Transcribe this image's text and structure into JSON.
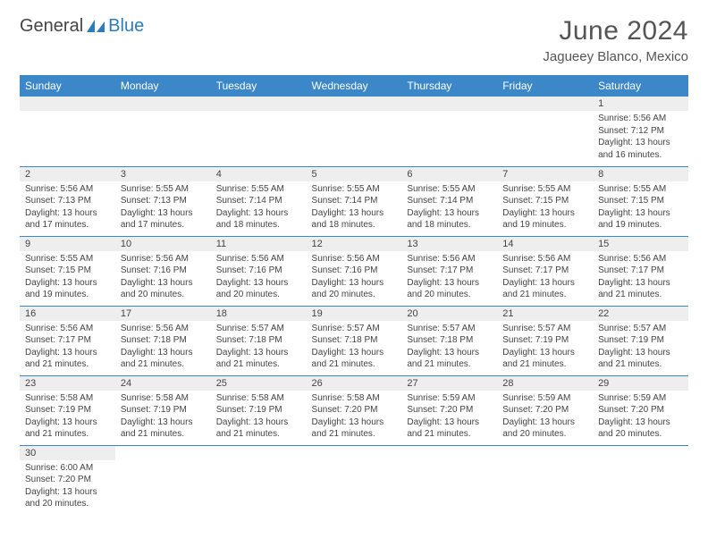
{
  "brand": {
    "part1": "General",
    "part2": "Blue",
    "logo_color": "#2b7bbd",
    "text_color": "#444444"
  },
  "title": "June 2024",
  "location": "Jagueey Blanco, Mexico",
  "header_bg": "#3b87c8",
  "header_fg": "#ffffff",
  "daynum_bg": "#eeeeee",
  "border_color": "#3b87c8",
  "body_text_color": "#444444",
  "font_family": "Arial, Helvetica, sans-serif",
  "title_fontsize": 30,
  "location_fontsize": 15,
  "header_fontsize": 12,
  "daynum_fontsize": 11,
  "body_fontsize": 10,
  "columns": [
    "Sunday",
    "Monday",
    "Tuesday",
    "Wednesday",
    "Thursday",
    "Friday",
    "Saturday"
  ],
  "weeks": [
    [
      null,
      null,
      null,
      null,
      null,
      null,
      {
        "n": "1",
        "sunrise": "5:56 AM",
        "sunset": "7:12 PM",
        "daylight": "13 hours and 16 minutes."
      }
    ],
    [
      {
        "n": "2",
        "sunrise": "5:56 AM",
        "sunset": "7:13 PM",
        "daylight": "13 hours and 17 minutes."
      },
      {
        "n": "3",
        "sunrise": "5:55 AM",
        "sunset": "7:13 PM",
        "daylight": "13 hours and 17 minutes."
      },
      {
        "n": "4",
        "sunrise": "5:55 AM",
        "sunset": "7:14 PM",
        "daylight": "13 hours and 18 minutes."
      },
      {
        "n": "5",
        "sunrise": "5:55 AM",
        "sunset": "7:14 PM",
        "daylight": "13 hours and 18 minutes."
      },
      {
        "n": "6",
        "sunrise": "5:55 AM",
        "sunset": "7:14 PM",
        "daylight": "13 hours and 18 minutes."
      },
      {
        "n": "7",
        "sunrise": "5:55 AM",
        "sunset": "7:15 PM",
        "daylight": "13 hours and 19 minutes."
      },
      {
        "n": "8",
        "sunrise": "5:55 AM",
        "sunset": "7:15 PM",
        "daylight": "13 hours and 19 minutes."
      }
    ],
    [
      {
        "n": "9",
        "sunrise": "5:55 AM",
        "sunset": "7:15 PM",
        "daylight": "13 hours and 19 minutes."
      },
      {
        "n": "10",
        "sunrise": "5:56 AM",
        "sunset": "7:16 PM",
        "daylight": "13 hours and 20 minutes."
      },
      {
        "n": "11",
        "sunrise": "5:56 AM",
        "sunset": "7:16 PM",
        "daylight": "13 hours and 20 minutes."
      },
      {
        "n": "12",
        "sunrise": "5:56 AM",
        "sunset": "7:16 PM",
        "daylight": "13 hours and 20 minutes."
      },
      {
        "n": "13",
        "sunrise": "5:56 AM",
        "sunset": "7:17 PM",
        "daylight": "13 hours and 20 minutes."
      },
      {
        "n": "14",
        "sunrise": "5:56 AM",
        "sunset": "7:17 PM",
        "daylight": "13 hours and 21 minutes."
      },
      {
        "n": "15",
        "sunrise": "5:56 AM",
        "sunset": "7:17 PM",
        "daylight": "13 hours and 21 minutes."
      }
    ],
    [
      {
        "n": "16",
        "sunrise": "5:56 AM",
        "sunset": "7:17 PM",
        "daylight": "13 hours and 21 minutes."
      },
      {
        "n": "17",
        "sunrise": "5:56 AM",
        "sunset": "7:18 PM",
        "daylight": "13 hours and 21 minutes."
      },
      {
        "n": "18",
        "sunrise": "5:57 AM",
        "sunset": "7:18 PM",
        "daylight": "13 hours and 21 minutes."
      },
      {
        "n": "19",
        "sunrise": "5:57 AM",
        "sunset": "7:18 PM",
        "daylight": "13 hours and 21 minutes."
      },
      {
        "n": "20",
        "sunrise": "5:57 AM",
        "sunset": "7:18 PM",
        "daylight": "13 hours and 21 minutes."
      },
      {
        "n": "21",
        "sunrise": "5:57 AM",
        "sunset": "7:19 PM",
        "daylight": "13 hours and 21 minutes."
      },
      {
        "n": "22",
        "sunrise": "5:57 AM",
        "sunset": "7:19 PM",
        "daylight": "13 hours and 21 minutes."
      }
    ],
    [
      {
        "n": "23",
        "sunrise": "5:58 AM",
        "sunset": "7:19 PM",
        "daylight": "13 hours and 21 minutes."
      },
      {
        "n": "24",
        "sunrise": "5:58 AM",
        "sunset": "7:19 PM",
        "daylight": "13 hours and 21 minutes."
      },
      {
        "n": "25",
        "sunrise": "5:58 AM",
        "sunset": "7:19 PM",
        "daylight": "13 hours and 21 minutes."
      },
      {
        "n": "26",
        "sunrise": "5:58 AM",
        "sunset": "7:20 PM",
        "daylight": "13 hours and 21 minutes."
      },
      {
        "n": "27",
        "sunrise": "5:59 AM",
        "sunset": "7:20 PM",
        "daylight": "13 hours and 21 minutes."
      },
      {
        "n": "28",
        "sunrise": "5:59 AM",
        "sunset": "7:20 PM",
        "daylight": "13 hours and 20 minutes."
      },
      {
        "n": "29",
        "sunrise": "5:59 AM",
        "sunset": "7:20 PM",
        "daylight": "13 hours and 20 minutes."
      }
    ],
    [
      {
        "n": "30",
        "sunrise": "6:00 AM",
        "sunset": "7:20 PM",
        "daylight": "13 hours and 20 minutes."
      },
      null,
      null,
      null,
      null,
      null,
      null
    ]
  ]
}
